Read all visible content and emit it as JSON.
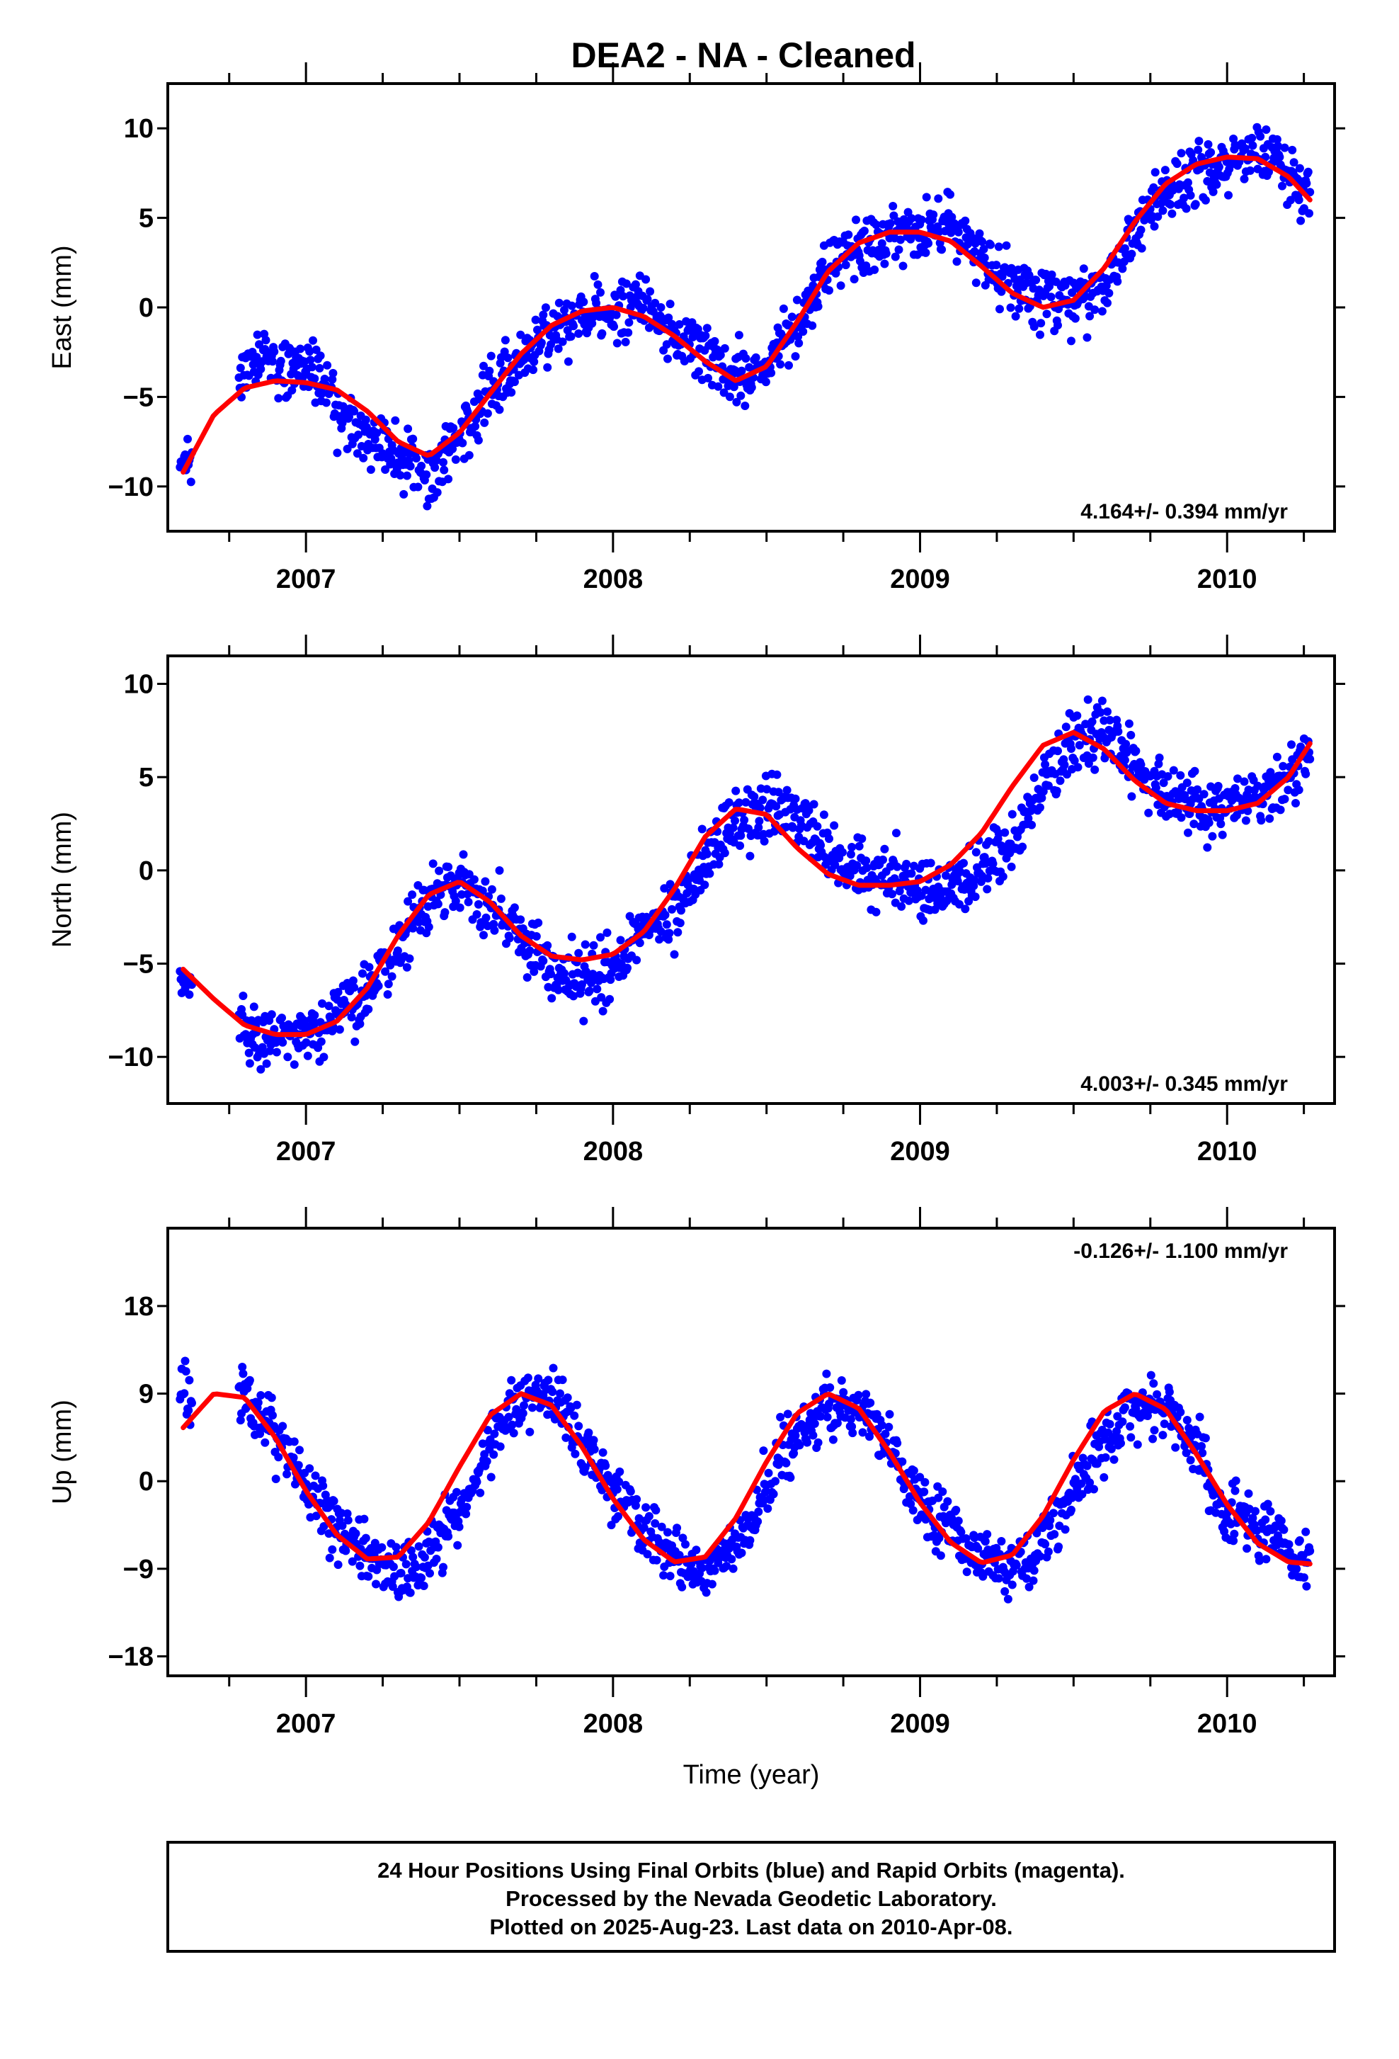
{
  "title": "DEA2  - NA - Cleaned",
  "footer": {
    "line1": "24 Hour Positions Using Final Orbits (blue) and Rapid Orbits (magenta).",
    "line2": "Processed by the Nevada Geodetic Laboratory.",
    "line3": "Plotted on 2025-Aug-23. Last data on 2010-Apr-08."
  },
  "colors": {
    "points": "#0000ff",
    "fit": "#ff0000",
    "frame": "#000000"
  },
  "chart_data": [
    {
      "type": "scatter",
      "panel": "east",
      "ylabel": "East (mm)",
      "xlabel": "",
      "rate_label": "4.164+/- 0.394 mm/yr",
      "xlim": [
        2006.55,
        2010.35
      ],
      "ylim": [
        -12.5,
        12.5
      ],
      "x_ticks": [
        2007,
        2008,
        2009,
        2010
      ],
      "y_ticks": [
        10,
        5,
        0,
        -5,
        -10
      ],
      "y_tick_labels": [
        "10",
        "5",
        "0",
        "−5",
        "−10"
      ],
      "data_start": 2006.59,
      "data_end": 2010.27,
      "gaps": [
        [
          2006.63,
          2006.78
        ]
      ],
      "series": [
        {
          "role": "points",
          "color": "#0000ff",
          "x": [
            2006.6,
            2006.8,
            2006.9,
            2007.0,
            2007.1,
            2007.2,
            2007.3,
            2007.4,
            2007.5,
            2007.6,
            2007.7,
            2007.8,
            2007.9,
            2008.0,
            2008.1,
            2008.2,
            2008.3,
            2008.4,
            2008.5,
            2008.6,
            2008.7,
            2008.8,
            2008.9,
            2009.0,
            2009.1,
            2009.2,
            2009.3,
            2009.4,
            2009.5,
            2009.6,
            2009.7,
            2009.8,
            2009.9,
            2010.0,
            2010.1,
            2010.2,
            2010.25
          ],
          "y": [
            -9.0,
            -3.0,
            -3.2,
            -3.3,
            -5.5,
            -7.0,
            -8.5,
            -9.5,
            -7.0,
            -4.8,
            -3.0,
            -1.5,
            -0.5,
            0.0,
            0.5,
            -1.5,
            -2.5,
            -4.0,
            -3.0,
            -1.0,
            2.5,
            3.5,
            4.0,
            4.0,
            4.5,
            2.5,
            1.5,
            0.5,
            0.5,
            1.0,
            4.5,
            6.5,
            7.5,
            8.0,
            9.0,
            7.5,
            6.0
          ]
        },
        {
          "role": "fit",
          "color": "#ff0000",
          "x": [
            2006.6,
            2006.7,
            2006.8,
            2006.9,
            2007.0,
            2007.1,
            2007.2,
            2007.3,
            2007.4,
            2007.5,
            2007.6,
            2007.7,
            2007.8,
            2007.9,
            2008.0,
            2008.1,
            2008.2,
            2008.3,
            2008.4,
            2008.5,
            2008.6,
            2008.7,
            2008.8,
            2008.9,
            2009.0,
            2009.1,
            2009.2,
            2009.3,
            2009.4,
            2009.5,
            2009.6,
            2009.7,
            2009.8,
            2009.9,
            2010.0,
            2010.1,
            2010.2,
            2010.27
          ],
          "y": [
            -9.2,
            -6.0,
            -4.5,
            -4.1,
            -4.2,
            -4.6,
            -5.8,
            -7.5,
            -8.3,
            -7.0,
            -4.8,
            -2.6,
            -1.0,
            -0.2,
            0.0,
            -0.5,
            -1.6,
            -3.0,
            -4.1,
            -3.3,
            -0.8,
            2.0,
            3.6,
            4.2,
            4.2,
            3.7,
            2.3,
            0.8,
            0.0,
            0.4,
            2.2,
            4.8,
            6.9,
            8.0,
            8.4,
            8.3,
            7.3,
            6.0
          ]
        }
      ]
    },
    {
      "type": "scatter",
      "panel": "north",
      "ylabel": "North (mm)",
      "xlabel": "",
      "rate_label": "4.003+/- 0.345 mm/yr",
      "xlim": [
        2006.55,
        2010.35
      ],
      "ylim": [
        -12.5,
        11.5
      ],
      "x_ticks": [
        2007,
        2008,
        2009,
        2010
      ],
      "y_ticks": [
        10,
        5,
        0,
        -5,
        -10
      ],
      "y_tick_labels": [
        "10",
        "5",
        "0",
        "−5",
        "−10"
      ],
      "data_start": 2006.59,
      "data_end": 2010.27,
      "gaps": [
        [
          2006.63,
          2006.78
        ]
      ],
      "series": [
        {
          "role": "points",
          "color": "#0000ff",
          "x": [
            2006.6,
            2006.8,
            2006.9,
            2007.0,
            2007.1,
            2007.2,
            2007.3,
            2007.4,
            2007.5,
            2007.6,
            2007.7,
            2007.8,
            2007.9,
            2008.0,
            2008.1,
            2008.2,
            2008.3,
            2008.4,
            2008.5,
            2008.6,
            2008.7,
            2008.8,
            2008.9,
            2009.0,
            2009.1,
            2009.2,
            2009.3,
            2009.4,
            2009.5,
            2009.6,
            2009.7,
            2009.8,
            2009.9,
            2010.0,
            2010.1,
            2010.2,
            2010.25
          ],
          "y": [
            -6.0,
            -8.5,
            -9.0,
            -9.0,
            -8.0,
            -6.5,
            -4.0,
            -1.5,
            -0.8,
            -2.0,
            -3.5,
            -5.0,
            -6.0,
            -5.5,
            -3.5,
            -2.0,
            0.5,
            2.5,
            3.5,
            3.0,
            1.0,
            0.0,
            -0.5,
            -1.0,
            -1.0,
            0.0,
            1.5,
            4.5,
            7.0,
            7.5,
            5.5,
            4.0,
            3.0,
            3.5,
            4.0,
            5.0,
            6.0
          ]
        },
        {
          "role": "fit",
          "color": "#ff0000",
          "x": [
            2006.6,
            2006.7,
            2006.8,
            2006.9,
            2007.0,
            2007.1,
            2007.2,
            2007.3,
            2007.4,
            2007.5,
            2007.6,
            2007.7,
            2007.8,
            2007.9,
            2008.0,
            2008.1,
            2008.2,
            2008.3,
            2008.4,
            2008.5,
            2008.6,
            2008.7,
            2008.8,
            2008.9,
            2009.0,
            2009.1,
            2009.2,
            2009.3,
            2009.4,
            2009.5,
            2009.6,
            2009.7,
            2009.8,
            2009.9,
            2010.0,
            2010.1,
            2010.2,
            2010.27
          ],
          "y": [
            -5.3,
            -6.9,
            -8.3,
            -8.8,
            -8.8,
            -8.1,
            -6.3,
            -3.5,
            -1.3,
            -0.6,
            -1.7,
            -3.5,
            -4.6,
            -4.8,
            -4.5,
            -3.3,
            -1.0,
            1.8,
            3.3,
            3.0,
            1.2,
            -0.2,
            -0.8,
            -0.8,
            -0.6,
            0.3,
            2.0,
            4.5,
            6.7,
            7.4,
            6.5,
            4.8,
            3.6,
            3.2,
            3.2,
            3.6,
            5.0,
            6.8
          ]
        }
      ]
    },
    {
      "type": "scatter",
      "panel": "up",
      "ylabel": "Up (mm)",
      "xlabel": "Time (year)",
      "rate_label": "-0.126+/- 1.100 mm/yr",
      "xlim": [
        2006.55,
        2010.35
      ],
      "ylim": [
        -20,
        26
      ],
      "x_ticks": [
        2007,
        2008,
        2009,
        2010
      ],
      "y_ticks": [
        18,
        9,
        0,
        -9,
        -18
      ],
      "y_tick_labels": [
        "18",
        "9",
        "0",
        "−9",
        "−18"
      ],
      "data_start": 2006.59,
      "data_end": 2010.27,
      "gaps": [
        [
          2006.63,
          2006.78
        ]
      ],
      "series": [
        {
          "role": "points",
          "color": "#0000ff",
          "x": [
            2006.6,
            2006.8,
            2006.9,
            2007.0,
            2007.1,
            2007.2,
            2007.3,
            2007.4,
            2007.5,
            2007.6,
            2007.7,
            2007.8,
            2007.9,
            2008.0,
            2008.1,
            2008.2,
            2008.3,
            2008.4,
            2008.5,
            2008.6,
            2008.7,
            2008.8,
            2008.9,
            2009.0,
            2009.1,
            2009.2,
            2009.3,
            2009.4,
            2009.5,
            2009.6,
            2009.7,
            2009.8,
            2009.9,
            2010.0,
            2010.1,
            2010.2,
            2010.25
          ],
          "y": [
            9.0,
            9.0,
            5.0,
            -1.0,
            -5.0,
            -8.0,
            -9.5,
            -8.0,
            -3.0,
            4.0,
            8.5,
            9.0,
            4.0,
            -1.0,
            -5.0,
            -8.0,
            -9.0,
            -7.0,
            -1.0,
            5.0,
            8.0,
            7.5,
            3.5,
            -2.0,
            -5.0,
            -8.0,
            -9.0,
            -6.0,
            -1.0,
            4.0,
            7.5,
            8.0,
            3.0,
            -3.0,
            -5.0,
            -7.0,
            -8.0
          ]
        },
        {
          "role": "fit",
          "color": "#ff0000",
          "x": [
            2006.6,
            2006.7,
            2006.8,
            2006.9,
            2007.0,
            2007.1,
            2007.2,
            2007.3,
            2007.4,
            2007.5,
            2007.6,
            2007.7,
            2007.8,
            2007.9,
            2008.0,
            2008.1,
            2008.2,
            2008.3,
            2008.4,
            2008.5,
            2008.6,
            2008.7,
            2008.8,
            2008.9,
            2009.0,
            2009.1,
            2009.2,
            2009.3,
            2009.4,
            2009.5,
            2009.6,
            2009.7,
            2009.8,
            2009.9,
            2010.0,
            2010.1,
            2010.2,
            2010.27
          ],
          "y": [
            5.5,
            9.0,
            8.6,
            4.5,
            -1.0,
            -5.5,
            -8.0,
            -7.8,
            -4.2,
            1.5,
            6.8,
            9.0,
            7.8,
            3.5,
            -1.8,
            -6.0,
            -8.3,
            -7.8,
            -3.8,
            2.0,
            7.0,
            9.0,
            7.5,
            3.0,
            -2.2,
            -6.3,
            -8.4,
            -7.6,
            -3.6,
            2.2,
            7.2,
            9.0,
            7.4,
            2.8,
            -2.4,
            -6.4,
            -8.3,
            -8.5
          ]
        }
      ]
    }
  ]
}
